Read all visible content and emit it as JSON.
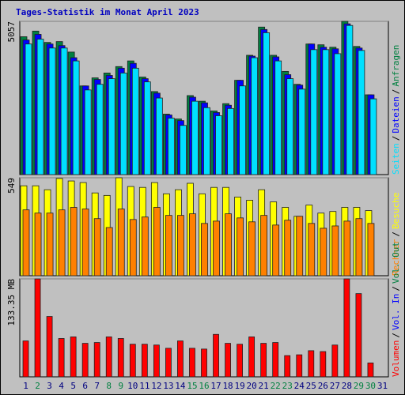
{
  "chart_data": [
    {
      "type": "bar",
      "title": "Tages-Statistik im Monat April 2023",
      "ylim": [
        0,
        5057
      ],
      "yticks": [
        5057
      ],
      "series": [
        {
          "name": "Anfragen",
          "color": "#008040",
          "values": [
            4549,
            4735,
            4362,
            4389,
            4043,
            2926,
            3192,
            3352,
            3564,
            3751,
            3219,
            2740,
            1995,
            1835,
            2607,
            2421,
            2101,
            2341,
            3112,
            3937,
            4868,
            3937,
            3405,
            2979,
            4309,
            4283,
            4203,
            5057,
            4229,
            2633,
            null
          ]
        },
        {
          "name": "Dateien",
          "color": "#0000ff",
          "values": [
            4442,
            4628,
            4309,
            4256,
            3857,
            2926,
            3139,
            3272,
            3511,
            3671,
            3165,
            2687,
            1968,
            1782,
            2554,
            2367,
            2048,
            2288,
            3112,
            3910,
            4788,
            3884,
            3298,
            2953,
            4309,
            4203,
            4150,
            4975,
            4176,
            2633,
            null
          ]
        },
        {
          "name": "Seiten",
          "color": "#00e0ff",
          "values": [
            4309,
            4469,
            4176,
            4176,
            3751,
            2793,
            2979,
            3165,
            3352,
            3511,
            3059,
            2527,
            1862,
            1623,
            2421,
            2208,
            1942,
            2181,
            2926,
            3857,
            4682,
            3751,
            3165,
            2820,
            4123,
            4123,
            3990,
            4921,
            4096,
            2500,
            null
          ]
        }
      ]
    },
    {
      "type": "bar",
      "ylim": [
        0,
        549
      ],
      "yticks": [
        549
      ],
      "series": [
        {
          "name": "Besuche",
          "color": "#ffff00",
          "values": [
            504,
            504,
            482,
            545,
            531,
            522,
            464,
            450,
            549,
            500,
            495,
            522,
            459,
            482,
            518,
            459,
            495,
            495,
            441,
            423,
            482,
            414,
            383,
            333,
            396,
            351,
            360,
            383,
            383,
            365,
            null
          ]
        },
        {
          "name": "Rechner",
          "color": "#ff8000",
          "values": [
            369,
            351,
            351,
            369,
            383,
            374,
            320,
            270,
            374,
            315,
            329,
            383,
            338,
            338,
            347,
            293,
            306,
            347,
            324,
            302,
            338,
            284,
            311,
            333,
            293,
            266,
            279,
            306,
            320,
            293,
            null
          ]
        }
      ]
    },
    {
      "type": "bar",
      "ylim": [
        0,
        133.35
      ],
      "yticks": [
        {
          "value": 133.35,
          "label": "133.35 MB"
        }
      ],
      "categories": [
        "1",
        "2",
        "3",
        "4",
        "5",
        "6",
        "7",
        "8",
        "9",
        "10",
        "11",
        "12",
        "13",
        "14",
        "15",
        "16",
        "17",
        "18",
        "19",
        "20",
        "21",
        "22",
        "23",
        "24",
        "25",
        "26",
        "27",
        "28",
        "29",
        "30",
        "31"
      ],
      "category_colors": [
        "#000080",
        "#008040",
        "#000080",
        "#000080",
        "#000080",
        "#000080",
        "#000080",
        "#008040",
        "#008040",
        "#000080",
        "#000080",
        "#000080",
        "#000080",
        "#000080",
        "#008040",
        "#008040",
        "#000080",
        "#000080",
        "#000080",
        "#000080",
        "#000080",
        "#008040",
        "#008040",
        "#000080",
        "#000080",
        "#000080",
        "#000080",
        "#000080",
        "#008040",
        "#008040",
        "#000080"
      ],
      "series": [
        {
          "name": "Vol. Out",
          "color": "#008040"
        },
        {
          "name": "Vol. In",
          "color": "#0000ff"
        },
        {
          "name": "Volumen",
          "color": "#ff0000",
          "values": [
            48.9,
            133.3,
            82.2,
            52.2,
            54.4,
            45.6,
            46.7,
            54.4,
            52.2,
            44.4,
            44.4,
            43.3,
            38.9,
            48.9,
            38.9,
            37.8,
            57.8,
            45.6,
            44.4,
            54.4,
            45.6,
            46.7,
            28.9,
            30.0,
            35.6,
            34.4,
            43.3,
            133.35,
            113.3,
            18.9,
            null
          ]
        }
      ]
    }
  ],
  "legend_separator": "/"
}
